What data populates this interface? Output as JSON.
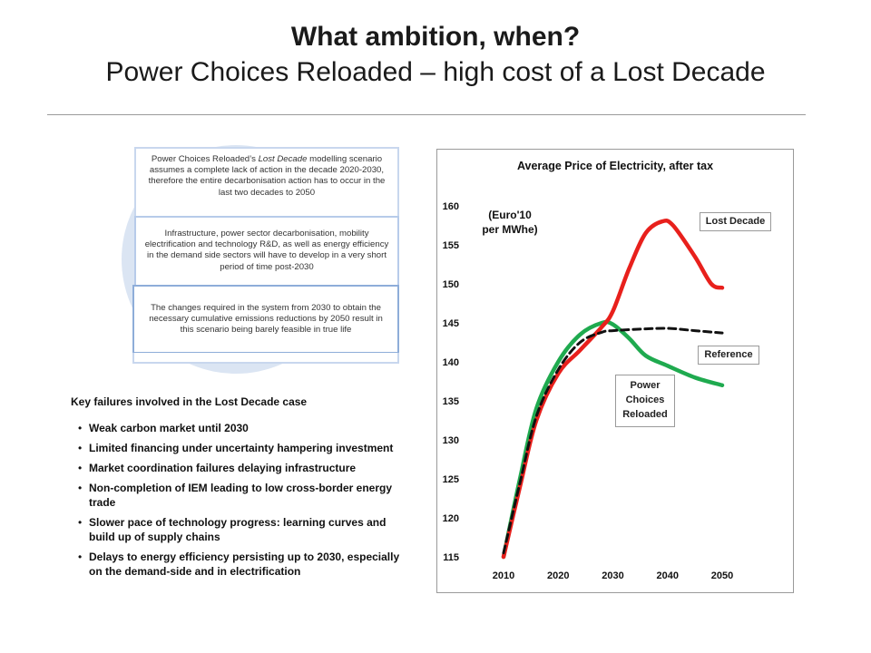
{
  "slide": {
    "title": "What ambition, when?",
    "subtitle": "Power Choices Reloaded – high cost of a Lost Decade"
  },
  "nested_boxes": [
    {
      "text_before_em": "Power Choices Reloaded’s ",
      "em": "Lost Decade",
      "text_after_em": " modelling scenario assumes a complete lack of action in the decade 2020-2030, therefore the entire decarbonisation action has to occur in the last two decades to 2050"
    },
    {
      "text": "Infrastructure, power sector decarbonisation, mobility electrification and technology R&D, as well as energy efficiency in the demand side sectors will have to develop in a very short period of time post-2030"
    },
    {
      "text": "The changes required in the system from 2030 to obtain the necessary cumulative emissions reductions by 2050 result in this scenario being barely feasible in true life"
    }
  ],
  "failures": {
    "title": "Key failures involved in the Lost Decade case",
    "items": [
      "Weak carbon market until 2030",
      "Limited financing under uncertainty hampering investment",
      "Market coordination failures delaying infrastructure",
      "Non-completion of IEM leading to low cross-border energy trade",
      "Slower pace of technology progress: learning curves and build up of supply chains",
      "Delays to energy efficiency persisting up to 2030, especially on the demand-side and in electrification"
    ]
  },
  "chart_data": {
    "type": "line",
    "title": "Average Price of Electricity, after tax",
    "ylabel_line1": "(Euro'10",
    "ylabel_line2": "per MWhe)",
    "xlabel": "",
    "x_ticks": [
      2010,
      2020,
      2030,
      2040,
      2050
    ],
    "y_ticks": [
      115,
      120,
      125,
      130,
      135,
      140,
      145,
      150,
      155,
      160
    ],
    "xlim": [
      2010,
      2050
    ],
    "ylim": [
      115,
      160
    ],
    "legend_placement": "inline labels",
    "grid": false,
    "series": [
      {
        "name": "Lost Decade",
        "color": "#e8201c",
        "style": "solid",
        "points": [
          [
            2010,
            115
          ],
          [
            2013,
            124
          ],
          [
            2016,
            132.5
          ],
          [
            2020,
            138.5
          ],
          [
            2024,
            141.5
          ],
          [
            2028,
            144.5
          ],
          [
            2030,
            146.5
          ],
          [
            2033,
            152
          ],
          [
            2036,
            156.5
          ],
          [
            2039,
            158
          ],
          [
            2041,
            157.5
          ],
          [
            2045,
            153.5
          ],
          [
            2048,
            150
          ],
          [
            2050,
            149.5
          ]
        ]
      },
      {
        "name": "Reference",
        "color": "#111111",
        "style": "dashed",
        "points": [
          [
            2010,
            115.5
          ],
          [
            2013,
            124.5
          ],
          [
            2016,
            133
          ],
          [
            2020,
            139
          ],
          [
            2024,
            142.5
          ],
          [
            2028,
            143.8
          ],
          [
            2030,
            144
          ],
          [
            2035,
            144.2
          ],
          [
            2040,
            144.3
          ],
          [
            2045,
            144
          ],
          [
            2050,
            143.7
          ]
        ]
      },
      {
        "name": "Power Choices Reloaded",
        "name_lines": [
          "Power",
          "Choices",
          "Reloaded"
        ],
        "color": "#1faa4f",
        "style": "solid",
        "points": [
          [
            2010,
            115
          ],
          [
            2013,
            125
          ],
          [
            2016,
            134
          ],
          [
            2020,
            140
          ],
          [
            2024,
            143.5
          ],
          [
            2028,
            145
          ],
          [
            2030,
            144.8
          ],
          [
            2033,
            143
          ],
          [
            2036,
            140.8
          ],
          [
            2040,
            139.5
          ],
          [
            2045,
            138
          ],
          [
            2050,
            137
          ]
        ]
      }
    ]
  }
}
